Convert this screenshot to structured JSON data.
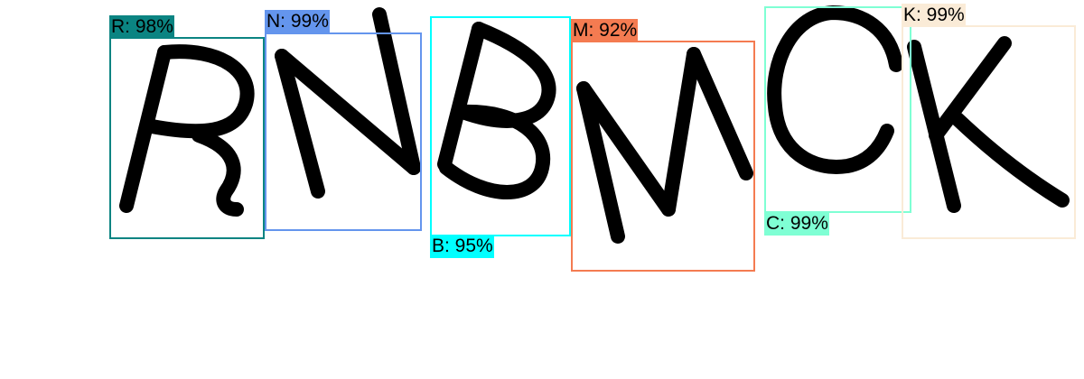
{
  "detections": [
    {
      "letter": "R",
      "label": "R: 98%",
      "color": "#0b8482"
    },
    {
      "letter": "N",
      "label": "N: 99%",
      "color": "#6495ed"
    },
    {
      "letter": "B",
      "label": "B: 95%",
      "color": "#00ffff"
    },
    {
      "letter": "M",
      "label": "M: 92%",
      "color": "#f47b51"
    },
    {
      "letter": "C",
      "label": "C: 99%",
      "color": "#7fffd4"
    },
    {
      "letter": "K",
      "label": "K: 99%",
      "color": "#faebd7"
    }
  ]
}
